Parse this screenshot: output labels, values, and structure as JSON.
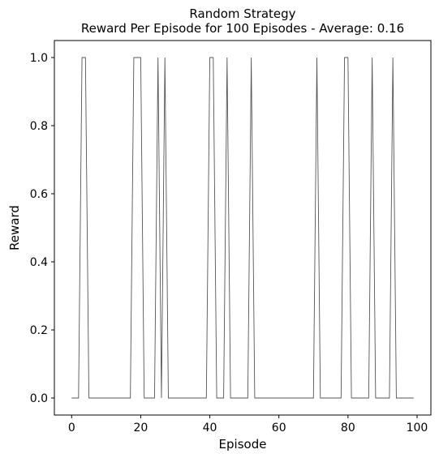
{
  "chart_data": {
    "type": "line",
    "title_line1": "Random Strategy",
    "title_line2": "Reward Per Episode for 100 Episodes - Average: 0.16",
    "xlabel": "Episode",
    "ylabel": "Reward",
    "xlim": [
      -5,
      104
    ],
    "ylim": [
      -0.05,
      1.05
    ],
    "xticks": [
      0,
      20,
      40,
      60,
      80,
      100
    ],
    "yticks": [
      0.0,
      0.2,
      0.4,
      0.6,
      0.8,
      1.0
    ],
    "xtick_labels": [
      "0",
      "20",
      "40",
      "60",
      "80",
      "100"
    ],
    "ytick_labels": [
      "0.0",
      "0.2",
      "0.4",
      "0.6",
      "0.8",
      "1.0"
    ],
    "grid": false,
    "series": [
      {
        "color": "#555555",
        "x": [
          0,
          1,
          2,
          3,
          4,
          5,
          6,
          7,
          8,
          9,
          10,
          11,
          12,
          13,
          14,
          15,
          16,
          17,
          18,
          19,
          20,
          21,
          22,
          23,
          24,
          25,
          26,
          27,
          28,
          29,
          30,
          31,
          32,
          33,
          34,
          35,
          36,
          37,
          38,
          39,
          40,
          41,
          42,
          43,
          44,
          45,
          46,
          47,
          48,
          49,
          50,
          51,
          52,
          53,
          54,
          55,
          56,
          57,
          58,
          59,
          60,
          61,
          62,
          63,
          64,
          65,
          66,
          67,
          68,
          69,
          70,
          71,
          72,
          73,
          74,
          75,
          76,
          77,
          78,
          79,
          80,
          81,
          82,
          83,
          84,
          85,
          86,
          87,
          88,
          89,
          90,
          91,
          92,
          93,
          94,
          95,
          96,
          97,
          98,
          99
        ],
        "y": [
          0,
          0,
          0,
          1,
          1,
          0,
          0,
          0,
          0,
          0,
          0,
          0,
          0,
          0,
          0,
          0,
          0,
          0,
          1,
          1,
          1,
          0,
          0,
          0,
          0,
          1,
          0,
          1,
          0,
          0,
          0,
          0,
          0,
          0,
          0,
          0,
          0,
          0,
          0,
          0,
          1,
          1,
          0,
          0,
          0,
          1,
          0,
          0,
          0,
          0,
          0,
          0,
          1,
          0,
          0,
          0,
          0,
          0,
          0,
          0,
          0,
          0,
          0,
          0,
          0,
          0,
          0,
          0,
          0,
          0,
          0,
          1,
          0,
          0,
          0,
          0,
          0,
          0,
          0,
          1,
          1,
          0,
          0,
          0,
          0,
          0,
          0,
          1,
          0,
          0,
          0,
          0,
          0,
          1,
          0,
          0,
          0,
          0,
          0,
          0
        ]
      }
    ]
  }
}
